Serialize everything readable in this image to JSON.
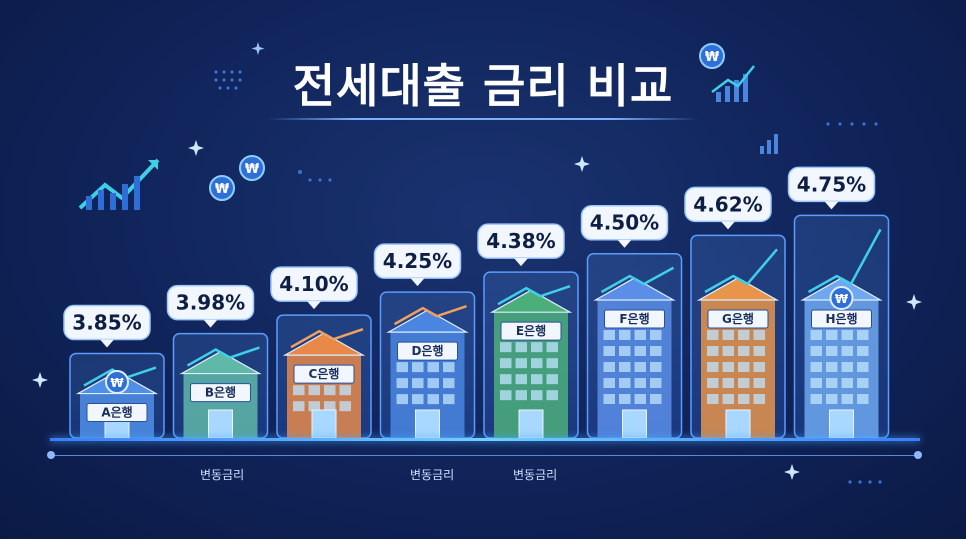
{
  "title": "전세대출 금리 비교",
  "notes": [
    "변동금리",
    "변동금리",
    "변동금리"
  ],
  "colors": {
    "background": "#10245a",
    "accent": "#4aa8ff",
    "label_bubble": "#f2f7ff",
    "trend_arrow": "#3fd0e8"
  },
  "icons": [
    "trend-up-icon",
    "won-coin-icon",
    "sparkle-icon",
    "bar-chart-icon"
  ],
  "chart_data": {
    "type": "bar",
    "title": "전세대출 금리 비교",
    "categories": [
      "A은행",
      "B은행",
      "C은행",
      "D은행",
      "E은행",
      "F은행",
      "G은행",
      "H은행"
    ],
    "values": [
      3.85,
      3.98,
      4.1,
      4.25,
      4.38,
      4.5,
      4.62,
      4.75
    ],
    "value_labels": [
      "3.85%",
      "3.98%",
      "4.10%",
      "4.25%",
      "4.38%",
      "4.50%",
      "4.62%",
      "4.75%"
    ],
    "unit": "%",
    "ylim": [
      3.3,
      4.85
    ],
    "grid": false,
    "legend": "none",
    "bar_colors": [
      "#4f8fe8",
      "#5fb8a8",
      "#e8894a",
      "#4a86e0",
      "#4caf7a",
      "#5a8ee8",
      "#e8944a",
      "#6fa8f0"
    ]
  }
}
